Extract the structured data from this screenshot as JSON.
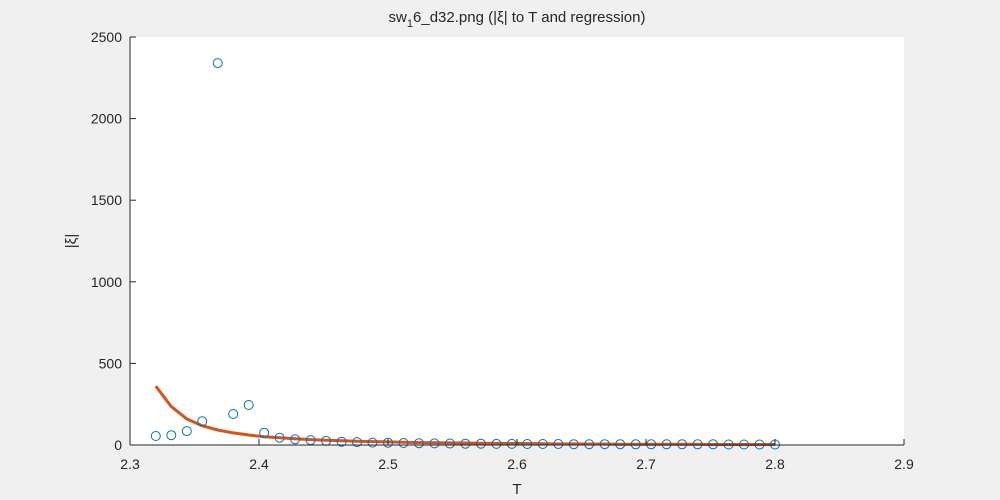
{
  "chart_data": {
    "type": "scatter",
    "title_main": "sw",
    "title_sub": "1",
    "title_rest": "6_d32.png (|ξ| to T and regression)",
    "xlabel": "T",
    "ylabel": "|ξ|",
    "xlim": [
      2.3,
      2.9
    ],
    "ylim": [
      0,
      2500
    ],
    "x_ticks": [
      "2.3",
      "2.4",
      "2.5",
      "2.6",
      "2.7",
      "2.8",
      "2.9"
    ],
    "y_ticks": [
      "0",
      "500",
      "1000",
      "1500",
      "2000",
      "2500"
    ],
    "grid": false,
    "colors": {
      "points": "#0072BD",
      "regression": "#D95319",
      "axes": "#262626",
      "plot_bg": "#ffffff",
      "figure_bg": "#f0f0f0"
    },
    "series": [
      {
        "kind": "scatter",
        "x": [
          2.32,
          2.332,
          2.344,
          2.356,
          2.368,
          2.38,
          2.392,
          2.404,
          2.416,
          2.428,
          2.44,
          2.452,
          2.464,
          2.476,
          2.488,
          2.5,
          2.512,
          2.524,
          2.536,
          2.548,
          2.56,
          2.572,
          2.584,
          2.596,
          2.608,
          2.62,
          2.632,
          2.644,
          2.656,
          2.668,
          2.68,
          2.692,
          2.704,
          2.716,
          2.728,
          2.74,
          2.752,
          2.764,
          2.776,
          2.788,
          2.8
        ],
        "y": [
          55,
          60,
          85,
          145,
          2340,
          190,
          245,
          75,
          45,
          35,
          30,
          25,
          20,
          18,
          15,
          14,
          12,
          11,
          10,
          9,
          8,
          8,
          7,
          7,
          6,
          6,
          6,
          5,
          5,
          5,
          5,
          4,
          4,
          4,
          4,
          4,
          4,
          3,
          3,
          3,
          3
        ]
      },
      {
        "kind": "line",
        "x": [
          2.32,
          2.332,
          2.344,
          2.356,
          2.368,
          2.38,
          2.392,
          2.404,
          2.416,
          2.428,
          2.44,
          2.452,
          2.464,
          2.476,
          2.488,
          2.5,
          2.512,
          2.524,
          2.536,
          2.548,
          2.56,
          2.572,
          2.584,
          2.596,
          2.608,
          2.62,
          2.632,
          2.644,
          2.656,
          2.668,
          2.68,
          2.692,
          2.704,
          2.716,
          2.728,
          2.74,
          2.752,
          2.764,
          2.776,
          2.788,
          2.8
        ],
        "y": [
          360,
          235,
          160,
          118,
          92,
          74,
          61,
          51,
          44,
          38,
          33,
          29,
          26,
          23,
          21,
          19,
          17,
          15,
          14,
          13,
          12,
          11,
          10,
          9,
          9,
          8,
          7,
          7,
          6,
          6,
          5,
          5,
          5,
          4,
          4,
          4,
          3,
          3,
          3,
          3,
          3
        ]
      }
    ]
  }
}
